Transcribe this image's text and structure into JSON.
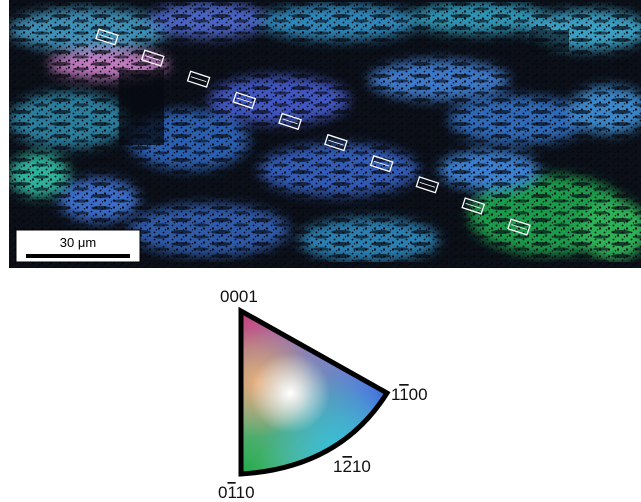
{
  "scale_bar": {
    "label": "30 μm"
  },
  "ipf": {
    "corner_top": "0001",
    "corner_right": {
      "base": "1100",
      "overbar_index": 1
    },
    "arc_label": {
      "base": "1210",
      "overbar_index": 1
    },
    "corner_bottom": {
      "base": "0110",
      "overbar_index": 1
    }
  },
  "markers": {
    "count": 10,
    "color": "#ffffff"
  },
  "colors": {
    "red_corner": "#c0407a",
    "green_corner": "#1fa84a",
    "blue_corner": "#3f66d6",
    "map_background": "#0b0f18"
  }
}
